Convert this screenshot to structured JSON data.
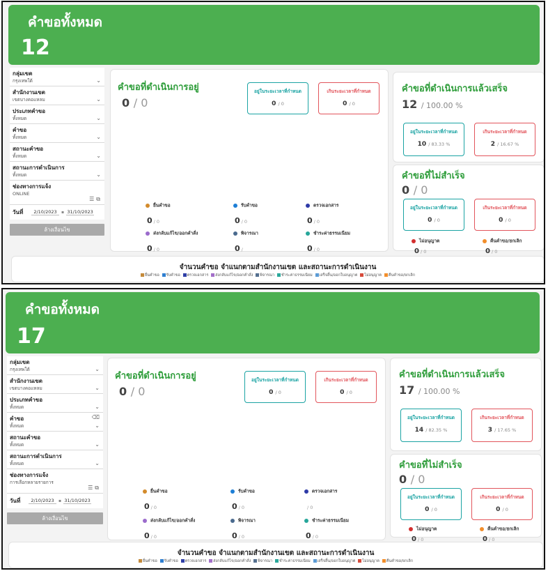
{
  "legend_colors": [
    "#c48a3a",
    "#2f7fd0",
    "#2f3fa6",
    "#a36fc9",
    "#55708f",
    "#2aa89b",
    "#5b9bd5",
    "#d64b3b",
    "#f28e2b"
  ],
  "status_dot_colors": {
    "submitted": "#d38b2c",
    "received": "#1e7fd6",
    "checking": "#2e3aa7",
    "returned": "#9b6bcc",
    "considering": "#4a6a8e",
    "payment": "#26a69a",
    "denied": "#d32f2f",
    "cancelled": "#f28e2b"
  },
  "screens": [
    {
      "banner": {
        "title": "คำขอทั้งหมด",
        "count": "12"
      },
      "filters": {
        "group_label": "กลุ่มเขต",
        "group_value": "กรุงเทพใต้",
        "office_label": "สำนักงานเขต",
        "office_value": "เขตบางคอแหลม",
        "type_label": "ประเภทคำขอ",
        "type_value": "ทั้งหมด",
        "request_label": "คำขอ",
        "request_value": "ทั้งหมด",
        "status_label": "สถานะคำขอ",
        "status_value": "ทั้งหมด",
        "progress_label": "สถานะการดำเนินการ",
        "progress_value": "ทั้งหมด",
        "channel_label": "ช่องทางการแจ้ง",
        "channel_value": "ONLINE",
        "date_label": "วันที่",
        "date_from": "2/10/2023",
        "date_to": "31/10/2023",
        "clear_button": "ล้างเงื่อนไข"
      },
      "in_progress": {
        "title": "คำขอที่ดำเนินการอยู่",
        "count": "0",
        "total": "/ 0",
        "within_label": "อยู่ในระยะเวลาที่กำหนด",
        "within_value": "0",
        "within_sub": "/ 0",
        "over_label": "เกินระยะเวลาที่กำหนด",
        "over_value": "0",
        "over_sub": "/ 0",
        "stats": [
          {
            "label": "ยื่นคำขอ",
            "value": "0",
            "sub": "/ 0"
          },
          {
            "label": "รับคำขอ",
            "value": "0",
            "sub": "/ 0"
          },
          {
            "label": "ตรวจเอกสาร",
            "value": "0",
            "sub": "/ 0"
          },
          {
            "label": "ส่งกลับแก้ไข/ออกคำสั่ง",
            "value": "0",
            "sub": "/ 0"
          },
          {
            "label": "พิจารณา",
            "value": "0",
            "sub": "/"
          },
          {
            "label": "ชำระค่าธรรมเนียม",
            "value": "0",
            "sub": "/ 0"
          }
        ]
      },
      "completed": {
        "title": "คำขอที่ดำเนินการแล้วเสร็จ",
        "count": "12",
        "total": "/ 100.00 %",
        "within_label": "อยู่ในระยะเวลาที่กำหนด",
        "within_value": "10",
        "within_sub": "/ 83.33 %",
        "over_label": "เกินระยะเวลาที่กำหนด",
        "over_value": "2",
        "over_sub": "/ 16.67 %"
      },
      "failed": {
        "title": "คำขอที่ไม่สำเร็จ",
        "count": "0",
        "total": "/ 0",
        "within_label": "อยู่ในระยะเวลาที่กำหนด",
        "within_value": "0",
        "within_sub": "/ 0",
        "over_label": "เกินระยะเวลาที่กำหนด",
        "over_value": "0",
        "over_sub": "/ 0",
        "denied_label": "ไม่อนุญาต",
        "denied_value": "0",
        "denied_sub": "/ 0",
        "cancelled_label": "คืนคำขอ/ยกเลิก",
        "cancelled_value": "0",
        "cancelled_sub": "/ 0"
      },
      "chart": {
        "title": "จำนวนคำขอ  จำแนกตามสำนักงานเขต และสถานะการดำเนินงาน",
        "legend": [
          "ยื่นคำขอ",
          "รับคำขอ",
          "ตรวจเอกสาร",
          "ส่งกลับแก้ไข/ออกคำสั่ง",
          "พิจารณา",
          "ชำระค่าธรรมเนียม",
          "เสร็จสิ้น/ออกใบอนุญาต",
          "ไม่อนุญาต",
          "คืนคำขอ/ยกเลิก"
        ]
      }
    },
    {
      "banner": {
        "title": "คำขอทั้งหมด",
        "count": "17"
      },
      "filters": {
        "group_label": "กลุ่มเขต",
        "group_value": "กรุงเทพใต้",
        "office_label": "สำนักงานเขต",
        "office_value": "เขตบางคอแหลม",
        "type_label": "ประเภทคำขอ",
        "type_value": "ทั้งหมด",
        "request_label": "คำขอ",
        "request_value": "ทั้งหมด",
        "status_label": "สถานะคำขอ",
        "status_value": "ทั้งหมด",
        "progress_label": "สถานะการดำเนินการ",
        "progress_value": "ทั้งหมด",
        "channel_label": "ช่องทางการแจ้ง",
        "channel_value": "การเลือกหลายรายการ",
        "date_label": "วันที่",
        "date_from": "2/10/2023",
        "date_to": "31/10/2023",
        "clear_button": "ล้างเงื่อนไข"
      },
      "in_progress": {
        "title": "คำขอที่ดำเนินการอยู่",
        "count": "0",
        "total": "/ 0",
        "within_label": "อยู่ในระยะเวลาที่กำหนด",
        "within_value": "0",
        "within_sub": "/ 0",
        "over_label": "เกินระยะเวลาที่กำหนด",
        "over_value": "0",
        "over_sub": "/ 0",
        "stats": [
          {
            "label": "ยื่นคำขอ",
            "value": "0",
            "sub": "/ 0"
          },
          {
            "label": "รับคำขอ",
            "value": "0",
            "sub": "/ 0"
          },
          {
            "label": "ตรวจเอกสาร",
            "value": "",
            "sub": "/ 0"
          },
          {
            "label": "ส่งกลับแก้ไข/ออกคำสั่ง",
            "value": "0",
            "sub": "/ 0"
          },
          {
            "label": "พิจารณา",
            "value": "0",
            "sub": "/ 0"
          },
          {
            "label": "ชำระค่าธรรมเนียม",
            "value": "0",
            "sub": "/ 0"
          }
        ]
      },
      "completed": {
        "title": "คำขอที่ดำเนินการแล้วเสร็จ",
        "count": "17",
        "total": "/ 100.00 %",
        "within_label": "อยู่ในระยะเวลาที่กำหนด",
        "within_value": "14",
        "within_sub": "/ 82.35 %",
        "over_label": "เกินระยะเวลาที่กำหนด",
        "over_value": "3",
        "over_sub": "/ 17.65 %"
      },
      "failed": {
        "title": "คำขอที่ไม่สำเร็จ",
        "count": "0",
        "total": "/ 0",
        "within_label": "อยู่ในระยะเวลาที่กำหนด",
        "within_value": "0",
        "within_sub": "/ 0",
        "over_label": "เกินระยะเวลาที่กำหนด",
        "over_value": "0",
        "over_sub": "/ 0",
        "denied_label": "ไม่อนุญาต",
        "denied_value": "0",
        "denied_sub": "/ 0",
        "cancelled_label": "คืนคำขอ/ยกเลิก",
        "cancelled_value": "0",
        "cancelled_sub": "/ 0"
      },
      "chart": {
        "title": "จำนวนคำขอ  จำแนกตามสำนักงานเขต และสถานะการดำเนินงาน",
        "legend": [
          "ยื่นคำขอ",
          "รับคำขอ",
          "ตรวจเอกสาร",
          "ส่งกลับแก้ไข/ออกคำสั่ง",
          "พิจารณา",
          "ชำระค่าธรรมเนียม",
          "เสร็จสิ้น/ออกใบอนุญาต",
          "ไม่อนุญาต",
          "คืนคำขอ/ยกเลิก"
        ]
      }
    }
  ]
}
